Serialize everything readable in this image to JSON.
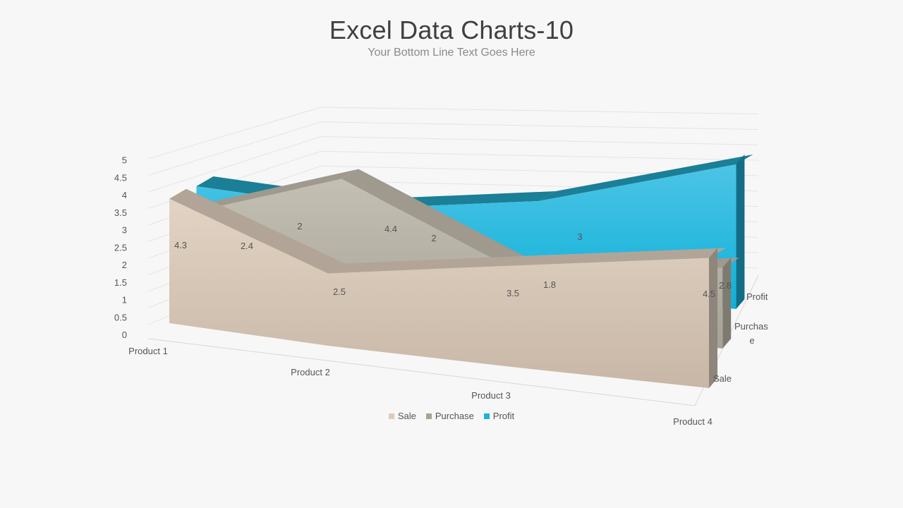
{
  "slide": {
    "title": "Excel Data Charts-10",
    "subtitle": "Your Bottom Line Text Goes Here"
  },
  "chart_data": {
    "type": "3d-area",
    "categories": [
      "Product 1",
      "Product 2",
      "Product 3",
      "Product 4"
    ],
    "series": [
      {
        "name": "Sale",
        "values": [
          4.3,
          2.5,
          3.5,
          4.5
        ],
        "color": "#dccbbb"
      },
      {
        "name": "Purchase",
        "values": [
          2.4,
          4.4,
          1.8,
          2.8
        ],
        "color": "#b9b3a6"
      },
      {
        "name": "Profit",
        "values": [
          2,
          2,
          3,
          5
        ],
        "color": "#24b6dc"
      }
    ],
    "depth_labels": [
      "Sale",
      "Purchase",
      "Profit"
    ],
    "yticks": [
      "0",
      "0.5",
      "1",
      "1.5",
      "2",
      "2.5",
      "3",
      "3.5",
      "4",
      "4.5",
      "5"
    ],
    "ylim": [
      0,
      5
    ],
    "legend": {
      "position": "bottom"
    },
    "grid": true
  }
}
